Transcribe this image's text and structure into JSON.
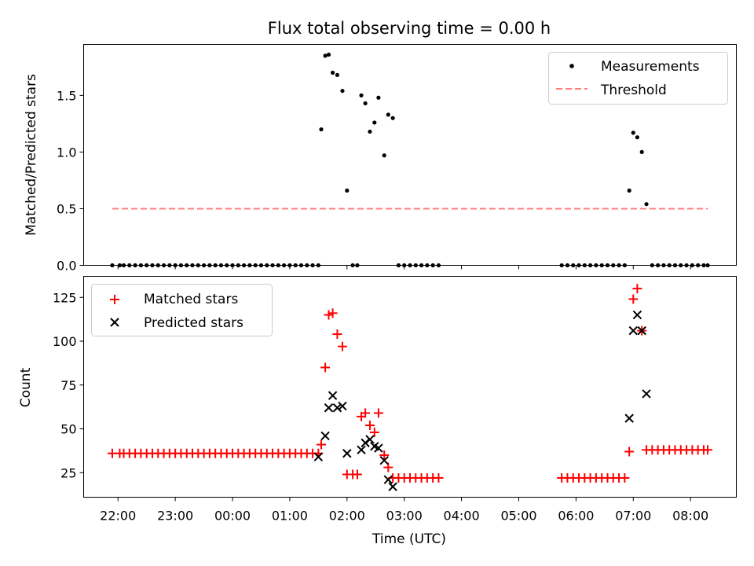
{
  "chart_data": [
    {
      "type": "scatter",
      "title": "Flux total observing time = 0.00 h",
      "ylabel": "Matched/Predicted stars",
      "ylim": [
        0,
        1.95
      ],
      "yticks": [
        0.0,
        0.5,
        1.0,
        1.5
      ],
      "ytick_labels": [
        "0.0",
        "0.5",
        "1.0",
        "1.5"
      ],
      "legend": {
        "position": "top-right",
        "entries": [
          "Measurements",
          "Threshold"
        ]
      },
      "threshold": {
        "name": "Threshold",
        "value": 0.5,
        "x_range": [
          -2.1,
          8.3
        ],
        "color": "#ff7f7f"
      },
      "series": [
        {
          "name": "Measurements",
          "color": "#000000",
          "x": [
            -2.1,
            -1.97,
            -1.9,
            -1.8,
            -1.7,
            -1.6,
            -1.5,
            -1.4,
            -1.3,
            -1.2,
            -1.1,
            -1.0,
            -0.9,
            -0.8,
            -0.7,
            -0.6,
            -0.5,
            -0.4,
            -0.3,
            -0.2,
            -0.1,
            0.0,
            0.1,
            0.2,
            0.3,
            0.4,
            0.5,
            0.6,
            0.7,
            0.8,
            0.9,
            1.0,
            1.1,
            1.2,
            1.3,
            1.4,
            1.5,
            1.55,
            1.62,
            1.68,
            1.75,
            1.83,
            1.92,
            2.0,
            2.1,
            2.18,
            2.25,
            2.32,
            2.4,
            2.48,
            2.55,
            2.65,
            2.72,
            2.8,
            2.9,
            3.0,
            3.1,
            3.2,
            3.3,
            3.4,
            3.5,
            3.6,
            5.75,
            5.85,
            5.95,
            6.05,
            6.15,
            6.25,
            6.35,
            6.45,
            6.55,
            6.65,
            6.75,
            6.85,
            6.93,
            7.0,
            7.07,
            7.15,
            7.23,
            7.33,
            7.43,
            7.53,
            7.63,
            7.73,
            7.83,
            7.93,
            8.03,
            8.13,
            8.23,
            8.3
          ],
          "y": [
            0,
            0,
            0,
            0,
            0,
            0,
            0,
            0,
            0,
            0,
            0,
            0,
            0,
            0,
            0,
            0,
            0,
            0,
            0,
            0,
            0,
            0,
            0,
            0,
            0,
            0,
            0,
            0,
            0,
            0,
            0,
            0,
            0,
            0,
            0,
            0,
            0,
            1.2,
            1.85,
            1.86,
            1.7,
            1.68,
            1.54,
            0.66,
            0,
            0,
            1.5,
            1.43,
            1.18,
            1.26,
            1.48,
            0.97,
            1.33,
            1.3,
            0,
            0,
            0,
            0,
            0,
            0,
            0,
            0,
            0,
            0,
            0,
            0,
            0,
            0,
            0,
            0,
            0,
            0,
            0,
            0,
            0.66,
            1.17,
            1.13,
            1.0,
            0.54,
            0,
            0,
            0,
            0,
            0,
            0,
            0,
            0,
            0,
            0,
            0
          ]
        }
      ]
    },
    {
      "type": "scatter",
      "xlabel": "Time (UTC)",
      "ylabel": "Count",
      "ylim": [
        11,
        137
      ],
      "yticks": [
        25,
        50,
        75,
        100,
        125
      ],
      "ytick_labels": [
        "25",
        "50",
        "75",
        "100",
        "125"
      ],
      "x_ticks": [
        -2,
        -1,
        0,
        1,
        2,
        3,
        4,
        5,
        6,
        7,
        8
      ],
      "x_tick_labels": [
        "22:00",
        "23:00",
        "00:00",
        "01:00",
        "02:00",
        "03:00",
        "04:00",
        "05:00",
        "06:00",
        "07:00",
        "08:00"
      ],
      "xlim": [
        -2.6,
        8.8
      ],
      "legend": {
        "position": "top-left",
        "entries": [
          "Matched stars",
          "Predicted stars"
        ]
      },
      "series": [
        {
          "name": "Matched stars",
          "marker": "+",
          "color": "#ff0000",
          "x": [
            -2.1,
            -1.97,
            -1.9,
            -1.8,
            -1.7,
            -1.6,
            -1.5,
            -1.4,
            -1.3,
            -1.2,
            -1.1,
            -1.0,
            -0.9,
            -0.8,
            -0.7,
            -0.6,
            -0.5,
            -0.4,
            -0.3,
            -0.2,
            -0.1,
            0.0,
            0.1,
            0.2,
            0.3,
            0.4,
            0.5,
            0.6,
            0.7,
            0.8,
            0.9,
            1.0,
            1.1,
            1.2,
            1.3,
            1.4,
            1.5,
            1.55,
            1.62,
            1.68,
            1.75,
            1.83,
            1.92,
            2.0,
            2.1,
            2.18,
            2.25,
            2.32,
            2.4,
            2.48,
            2.55,
            2.65,
            2.72,
            2.8,
            2.9,
            3.0,
            3.1,
            3.2,
            3.3,
            3.4,
            3.5,
            3.6,
            5.75,
            5.85,
            5.95,
            6.05,
            6.15,
            6.25,
            6.35,
            6.45,
            6.55,
            6.65,
            6.75,
            6.85,
            6.93,
            7.0,
            7.07,
            7.15,
            7.23,
            7.33,
            7.43,
            7.53,
            7.63,
            7.73,
            7.83,
            7.93,
            8.03,
            8.13,
            8.23,
            8.3
          ],
          "y": [
            36,
            36,
            36,
            36,
            36,
            36,
            36,
            36,
            36,
            36,
            36,
            36,
            36,
            36,
            36,
            36,
            36,
            36,
            36,
            36,
            36,
            36,
            36,
            36,
            36,
            36,
            36,
            36,
            36,
            36,
            36,
            36,
            36,
            36,
            36,
            36,
            36,
            41,
            85,
            115,
            116,
            104,
            97,
            24,
            24,
            24,
            57,
            59,
            52,
            48,
            59,
            35,
            28,
            22,
            22,
            22,
            22,
            22,
            22,
            22,
            22,
            22,
            22,
            22,
            22,
            22,
            22,
            22,
            22,
            22,
            22,
            22,
            22,
            22,
            37,
            124,
            130,
            106,
            38,
            38,
            38,
            38,
            38,
            38,
            38,
            38,
            38,
            38,
            38,
            38
          ]
        },
        {
          "name": "Predicted stars",
          "marker": "x",
          "color": "#000000",
          "x": [
            1.5,
            1.62,
            1.68,
            1.75,
            1.83,
            1.92,
            2.0,
            2.25,
            2.32,
            2.4,
            2.48,
            2.55,
            2.65,
            2.72,
            2.8,
            6.93,
            7.0,
            7.07,
            7.15,
            7.23
          ],
          "y": [
            34,
            46,
            62,
            69,
            62,
            63,
            36,
            38,
            42,
            44,
            40,
            39,
            32,
            21,
            17,
            56,
            106,
            115,
            106,
            70
          ]
        }
      ]
    }
  ]
}
